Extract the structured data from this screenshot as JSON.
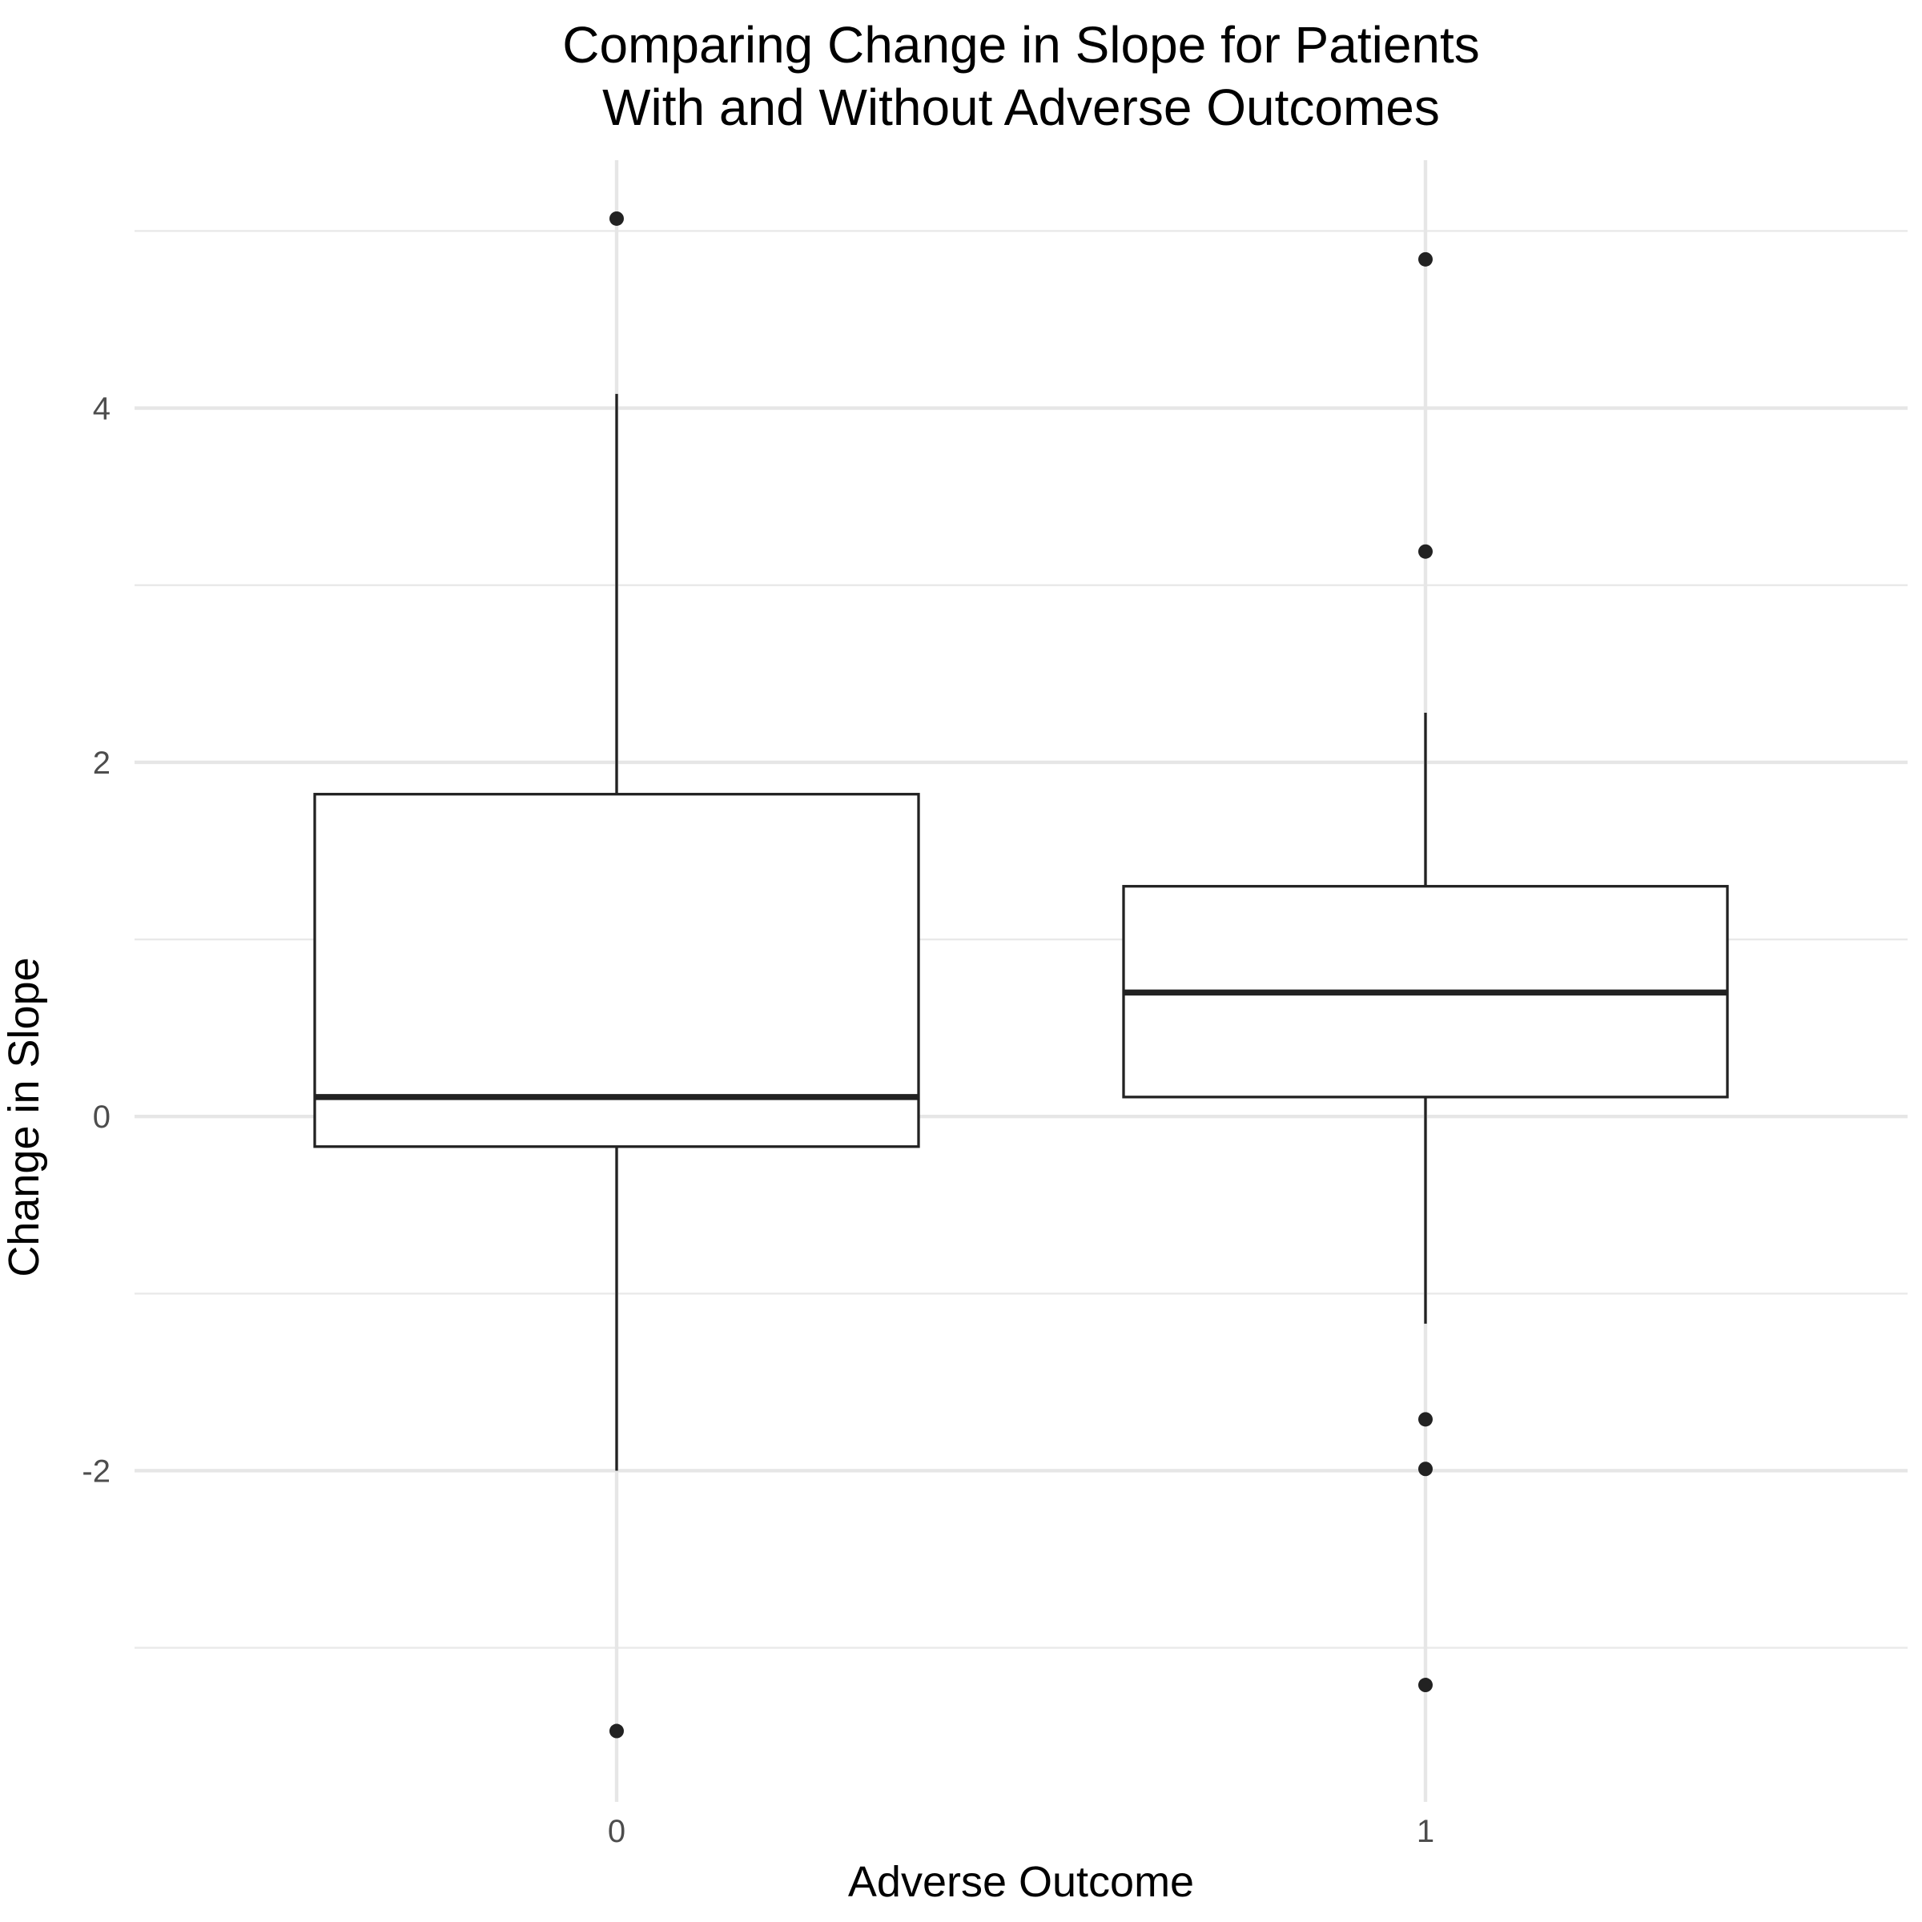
{
  "chart_data": {
    "type": "boxplot",
    "title_lines": [
      "Comparing Change in Slope for Patients",
      "With and Without Adverse Outcomes"
    ],
    "xlabel": "Adverse Outcome",
    "ylabel": "Change in Slope",
    "categories": [
      "0",
      "1"
    ],
    "y_ticks": [
      -2,
      0,
      2,
      4
    ],
    "y_tick_labels": [
      "-2",
      "0",
      "2",
      "4"
    ],
    "ylim": [
      -3.87,
      5.4
    ],
    "grid": true,
    "boxes": [
      {
        "category": "0",
        "whisker_low": -2.0,
        "q1": -0.17,
        "median": 0.11,
        "q3": 1.82,
        "whisker_high": 4.08,
        "outliers": [
          5.07,
          -3.47
        ]
      },
      {
        "category": "1",
        "whisker_low": -1.17,
        "q1": 0.11,
        "median": 0.7,
        "q3": 1.3,
        "whisker_high": 2.28,
        "outliers": [
          4.84,
          3.19,
          -1.71,
          -1.99,
          -3.21
        ]
      }
    ]
  }
}
